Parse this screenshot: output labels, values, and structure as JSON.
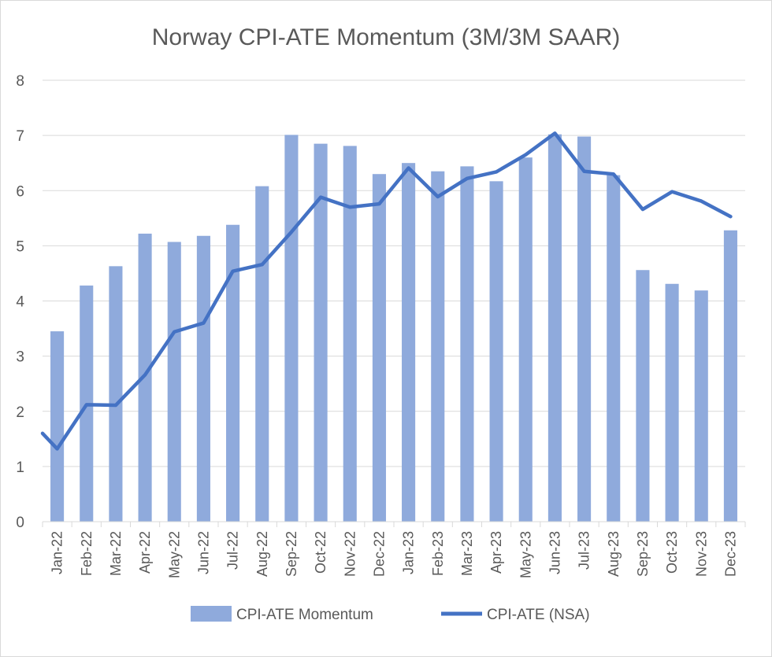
{
  "chart_data": {
    "type": "bar+line",
    "title": "Norway CPI-ATE Momentum (3M/3M SAAR)",
    "xlabel": "",
    "ylabel": "",
    "ylim": [
      0,
      8
    ],
    "yticks": [
      "0",
      "1",
      "2",
      "3",
      "4",
      "5",
      "6",
      "7",
      "8"
    ],
    "grid": true,
    "legend_position": "bottom",
    "categories": [
      "Jan-22",
      "Feb-22",
      "Mar-22",
      "Apr-22",
      "May-22",
      "Jun-22",
      "Jul-22",
      "Aug-22",
      "Sep-22",
      "Oct-22",
      "Nov-22",
      "Dec-22",
      "Jan-23",
      "Feb-23",
      "Mar-23",
      "Apr-23",
      "May-23",
      "Jun-23",
      "Jul-23",
      "Aug-23",
      "Sep-23",
      "Oct-23",
      "Nov-23",
      "Dec-23"
    ],
    "series": [
      {
        "name": "CPI-ATE Momentum",
        "type": "bar",
        "color": "#8faadc",
        "values": [
          3.45,
          4.28,
          4.63,
          5.22,
          5.07,
          5.18,
          5.38,
          6.08,
          7.01,
          6.85,
          6.81,
          6.3,
          6.5,
          6.35,
          6.44,
          6.17,
          6.6,
          7.02,
          6.98,
          6.28,
          4.56,
          4.31,
          4.19,
          5.28
        ]
      },
      {
        "name": "CPI-ATE (NSA)",
        "type": "line",
        "color": "#4472c4",
        "start_value": 1.6,
        "values": [
          1.32,
          2.12,
          2.11,
          2.66,
          3.44,
          3.6,
          4.54,
          4.66,
          5.25,
          5.88,
          5.7,
          5.76,
          6.41,
          5.89,
          6.22,
          6.34,
          6.65,
          7.04,
          6.35,
          6.3,
          5.66,
          5.98,
          5.81,
          5.53
        ]
      }
    ]
  }
}
